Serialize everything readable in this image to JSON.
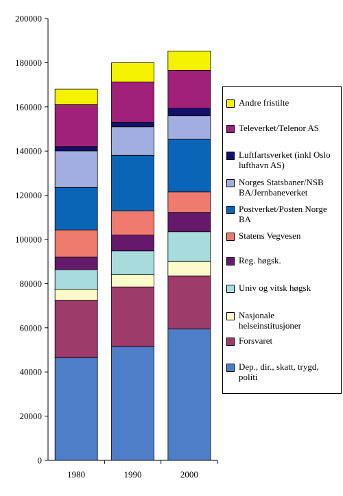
{
  "chart_data": {
    "type": "bar",
    "stacked": true,
    "categories": [
      "1980",
      "1990",
      "2000"
    ],
    "ylim": [
      0,
      200000
    ],
    "yticks": [
      0,
      20000,
      40000,
      60000,
      80000,
      100000,
      120000,
      140000,
      160000,
      180000,
      200000
    ],
    "grid": false,
    "legend_position": "right",
    "series": [
      {
        "name": "Dep., dir., skatt, trygd, politi",
        "color": "#4f7ec8",
        "values": [
          46500,
          51500,
          59500
        ]
      },
      {
        "name": "Forsvaret",
        "color": "#9e3b6b",
        "values": [
          26000,
          27000,
          24000
        ]
      },
      {
        "name": "Nasjonale helseinstitusjoner",
        "color": "#fdfbc9",
        "values": [
          5000,
          5500,
          6500
        ]
      },
      {
        "name": "Univ og vitsk høgsk",
        "color": "#a8dcdc",
        "values": [
          8800,
          10800,
          13500
        ]
      },
      {
        "name": "Reg. høgsk.",
        "color": "#66186b",
        "values": [
          5700,
          7200,
          8700
        ]
      },
      {
        "name": "Statens Vegvesen",
        "color": "#ef7b6f",
        "values": [
          12300,
          10900,
          9300
        ]
      },
      {
        "name": "Postverket/Posten Norge BA",
        "color": "#0a64b8",
        "values": [
          19200,
          25200,
          23800
        ]
      },
      {
        "name": "Norges Statsbaner/NSB BA/Jernbaneverket",
        "color": "#a3aee0",
        "values": [
          16600,
          12900,
          10700
        ]
      },
      {
        "name": "Luftfartsverket (inkl Oslo lufthavn AS)",
        "color": "#10106e",
        "values": [
          1900,
          2000,
          3300
        ]
      },
      {
        "name": "Televerket/Telenor AS",
        "color": "#a0207a",
        "values": [
          19000,
          18300,
          17300
        ]
      },
      {
        "name": "Andre fristilte",
        "color": "#f5f200",
        "values": [
          7000,
          8700,
          8700
        ]
      }
    ]
  }
}
